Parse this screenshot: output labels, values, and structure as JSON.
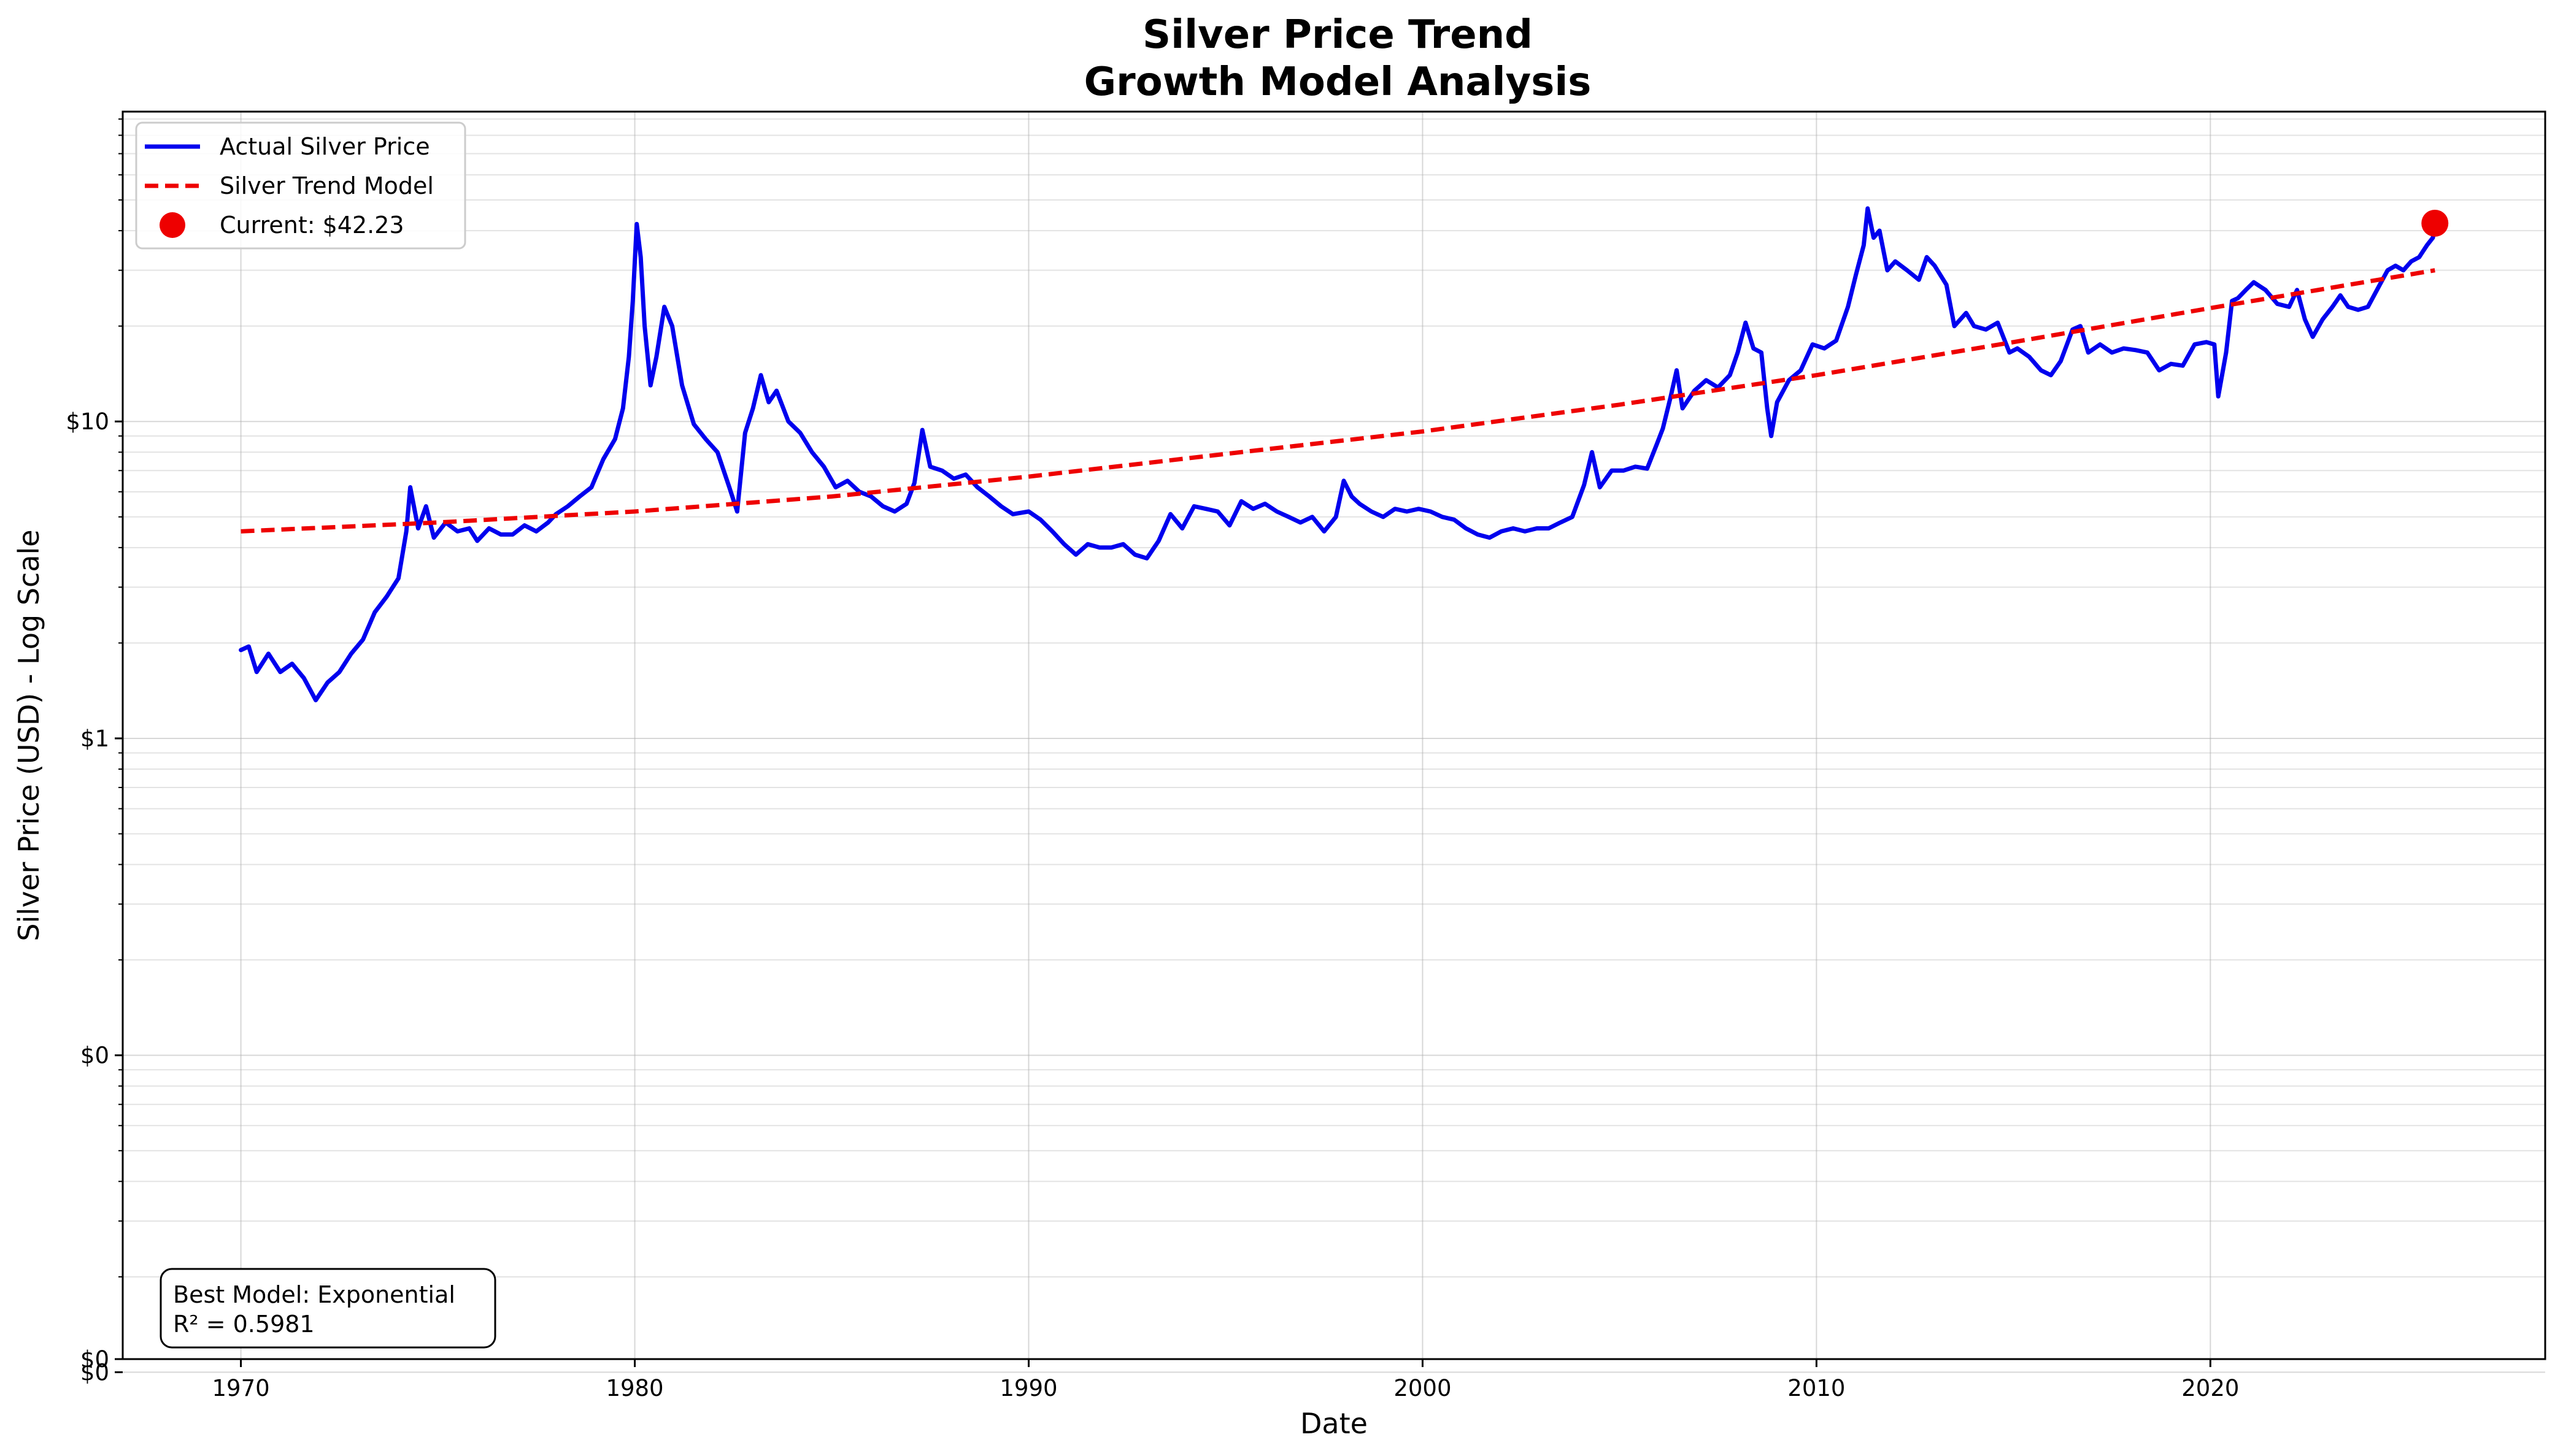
{
  "chart_data": {
    "type": "line",
    "title": "Silver Price Trend",
    "subtitle": "Growth Model Analysis",
    "xlabel": "Date",
    "ylabel": "Silver Price (USD) - Log Scale",
    "x_scale": "time",
    "y_scale": "log",
    "xlim": [
      1967.0,
      2028.5
    ],
    "ylim": [
      0.011,
      95
    ],
    "x_ticks": [
      {
        "value": 1970,
        "label": "1970"
      },
      {
        "value": 1980,
        "label": "1980"
      },
      {
        "value": 1990,
        "label": "1990"
      },
      {
        "value": 2000,
        "label": "2000"
      },
      {
        "value": 2010,
        "label": "2010"
      },
      {
        "value": 2020,
        "label": "2020"
      }
    ],
    "y_ticks": [
      {
        "value": 0.01,
        "label": "$0"
      },
      {
        "value": 0.1,
        "label": "$0"
      },
      {
        "value": 1,
        "label": "$1"
      },
      {
        "value": 10,
        "label": "$10"
      }
    ],
    "grid": true,
    "legend_position": "top-left",
    "series": [
      {
        "name": "Actual Silver Price",
        "color": "#0000ee",
        "style": "solid",
        "points": [
          [
            1970.0,
            1.9
          ],
          [
            1970.2,
            1.95
          ],
          [
            1970.4,
            1.62
          ],
          [
            1970.7,
            1.85
          ],
          [
            1971.0,
            1.62
          ],
          [
            1971.3,
            1.72
          ],
          [
            1971.6,
            1.55
          ],
          [
            1971.9,
            1.32
          ],
          [
            1972.2,
            1.5
          ],
          [
            1972.5,
            1.62
          ],
          [
            1972.8,
            1.85
          ],
          [
            1973.1,
            2.05
          ],
          [
            1973.4,
            2.5
          ],
          [
            1973.7,
            2.8
          ],
          [
            1974.0,
            3.2
          ],
          [
            1974.2,
            4.5
          ],
          [
            1974.3,
            6.2
          ],
          [
            1974.5,
            4.6
          ],
          [
            1974.7,
            5.4
          ],
          [
            1974.9,
            4.3
          ],
          [
            1975.2,
            4.8
          ],
          [
            1975.5,
            4.5
          ],
          [
            1975.8,
            4.6
          ],
          [
            1976.0,
            4.2
          ],
          [
            1976.3,
            4.6
          ],
          [
            1976.6,
            4.4
          ],
          [
            1976.9,
            4.4
          ],
          [
            1977.2,
            4.7
          ],
          [
            1977.5,
            4.5
          ],
          [
            1977.8,
            4.8
          ],
          [
            1978.0,
            5.1
          ],
          [
            1978.3,
            5.4
          ],
          [
            1978.6,
            5.8
          ],
          [
            1978.9,
            6.2
          ],
          [
            1979.2,
            7.6
          ],
          [
            1979.5,
            8.8
          ],
          [
            1979.7,
            11.0
          ],
          [
            1979.85,
            16.0
          ],
          [
            1979.95,
            24.0
          ],
          [
            1980.05,
            42.0
          ],
          [
            1980.15,
            33.0
          ],
          [
            1980.25,
            20.0
          ],
          [
            1980.4,
            13.0
          ],
          [
            1980.55,
            16.0
          ],
          [
            1980.75,
            23.0
          ],
          [
            1980.95,
            20.0
          ],
          [
            1981.2,
            13.0
          ],
          [
            1981.5,
            9.8
          ],
          [
            1981.8,
            8.8
          ],
          [
            1982.1,
            8.0
          ],
          [
            1982.4,
            6.2
          ],
          [
            1982.6,
            5.2
          ],
          [
            1982.8,
            9.2
          ],
          [
            1983.0,
            11.0
          ],
          [
            1983.2,
            14.0
          ],
          [
            1983.4,
            11.5
          ],
          [
            1983.6,
            12.5
          ],
          [
            1983.9,
            10.0
          ],
          [
            1984.2,
            9.2
          ],
          [
            1984.5,
            8.0
          ],
          [
            1984.8,
            7.2
          ],
          [
            1985.1,
            6.2
          ],
          [
            1985.4,
            6.5
          ],
          [
            1985.7,
            6.0
          ],
          [
            1986.0,
            5.8
          ],
          [
            1986.3,
            5.4
          ],
          [
            1986.6,
            5.2
          ],
          [
            1986.9,
            5.5
          ],
          [
            1987.1,
            6.4
          ],
          [
            1987.3,
            9.4
          ],
          [
            1987.5,
            7.2
          ],
          [
            1987.8,
            7.0
          ],
          [
            1988.1,
            6.6
          ],
          [
            1988.4,
            6.8
          ],
          [
            1988.7,
            6.2
          ],
          [
            1989.0,
            5.8
          ],
          [
            1989.3,
            5.4
          ],
          [
            1989.6,
            5.1
          ],
          [
            1990.0,
            5.2
          ],
          [
            1990.3,
            4.9
          ],
          [
            1990.6,
            4.5
          ],
          [
            1990.9,
            4.1
          ],
          [
            1991.2,
            3.8
          ],
          [
            1991.5,
            4.1
          ],
          [
            1991.8,
            4.0
          ],
          [
            1992.1,
            4.0
          ],
          [
            1992.4,
            4.1
          ],
          [
            1992.7,
            3.8
          ],
          [
            1993.0,
            3.7
          ],
          [
            1993.3,
            4.2
          ],
          [
            1993.6,
            5.1
          ],
          [
            1993.9,
            4.6
          ],
          [
            1994.2,
            5.4
          ],
          [
            1994.5,
            5.3
          ],
          [
            1994.8,
            5.2
          ],
          [
            1995.1,
            4.7
          ],
          [
            1995.4,
            5.6
          ],
          [
            1995.7,
            5.3
          ],
          [
            1996.0,
            5.5
          ],
          [
            1996.3,
            5.2
          ],
          [
            1996.6,
            5.0
          ],
          [
            1996.9,
            4.8
          ],
          [
            1997.2,
            5.0
          ],
          [
            1997.5,
            4.5
          ],
          [
            1997.8,
            5.0
          ],
          [
            1998.0,
            6.5
          ],
          [
            1998.2,
            5.8
          ],
          [
            1998.4,
            5.5
          ],
          [
            1998.7,
            5.2
          ],
          [
            1999.0,
            5.0
          ],
          [
            1999.3,
            5.3
          ],
          [
            1999.6,
            5.2
          ],
          [
            1999.9,
            5.3
          ],
          [
            2000.2,
            5.2
          ],
          [
            2000.5,
            5.0
          ],
          [
            2000.8,
            4.9
          ],
          [
            2001.1,
            4.6
          ],
          [
            2001.4,
            4.4
          ],
          [
            2001.7,
            4.3
          ],
          [
            2002.0,
            4.5
          ],
          [
            2002.3,
            4.6
          ],
          [
            2002.6,
            4.5
          ],
          [
            2002.9,
            4.6
          ],
          [
            2003.2,
            4.6
          ],
          [
            2003.5,
            4.8
          ],
          [
            2003.8,
            5.0
          ],
          [
            2004.1,
            6.3
          ],
          [
            2004.3,
            8.0
          ],
          [
            2004.5,
            6.2
          ],
          [
            2004.8,
            7.0
          ],
          [
            2005.1,
            7.0
          ],
          [
            2005.4,
            7.2
          ],
          [
            2005.7,
            7.1
          ],
          [
            2005.95,
            8.5
          ],
          [
            2006.1,
            9.5
          ],
          [
            2006.3,
            12.0
          ],
          [
            2006.45,
            14.5
          ],
          [
            2006.6,
            11.0
          ],
          [
            2006.9,
            12.5
          ],
          [
            2007.2,
            13.5
          ],
          [
            2007.5,
            12.8
          ],
          [
            2007.8,
            14.0
          ],
          [
            2008.0,
            16.5
          ],
          [
            2008.2,
            20.5
          ],
          [
            2008.4,
            17.0
          ],
          [
            2008.6,
            16.5
          ],
          [
            2008.75,
            11.0
          ],
          [
            2008.85,
            9.0
          ],
          [
            2009.0,
            11.5
          ],
          [
            2009.3,
            13.5
          ],
          [
            2009.6,
            14.5
          ],
          [
            2009.9,
            17.5
          ],
          [
            2010.2,
            17.0
          ],
          [
            2010.5,
            18.0
          ],
          [
            2010.8,
            23.0
          ],
          [
            2011.0,
            29.0
          ],
          [
            2011.2,
            36.0
          ],
          [
            2011.3,
            47.0
          ],
          [
            2011.45,
            38.0
          ],
          [
            2011.6,
            40.0
          ],
          [
            2011.8,
            30.0
          ],
          [
            2012.0,
            32.0
          ],
          [
            2012.3,
            30.0
          ],
          [
            2012.6,
            28.0
          ],
          [
            2012.8,
            33.0
          ],
          [
            2013.0,
            31.0
          ],
          [
            2013.3,
            27.0
          ],
          [
            2013.5,
            20.0
          ],
          [
            2013.8,
            22.0
          ],
          [
            2014.0,
            20.0
          ],
          [
            2014.3,
            19.5
          ],
          [
            2014.6,
            20.5
          ],
          [
            2014.9,
            16.5
          ],
          [
            2015.1,
            17.0
          ],
          [
            2015.4,
            16.0
          ],
          [
            2015.7,
            14.5
          ],
          [
            2015.95,
            14.0
          ],
          [
            2016.2,
            15.5
          ],
          [
            2016.5,
            19.5
          ],
          [
            2016.7,
            20.0
          ],
          [
            2016.9,
            16.5
          ],
          [
            2017.2,
            17.5
          ],
          [
            2017.5,
            16.5
          ],
          [
            2017.8,
            17.0
          ],
          [
            2018.1,
            16.8
          ],
          [
            2018.4,
            16.5
          ],
          [
            2018.7,
            14.5
          ],
          [
            2019.0,
            15.2
          ],
          [
            2019.3,
            15.0
          ],
          [
            2019.6,
            17.5
          ],
          [
            2019.9,
            17.8
          ],
          [
            2020.1,
            17.5
          ],
          [
            2020.2,
            12.0
          ],
          [
            2020.4,
            16.5
          ],
          [
            2020.55,
            24.0
          ],
          [
            2020.7,
            24.5
          ],
          [
            2020.9,
            26.0
          ],
          [
            2021.1,
            27.5
          ],
          [
            2021.4,
            26.0
          ],
          [
            2021.7,
            23.5
          ],
          [
            2022.0,
            23.0
          ],
          [
            2022.2,
            26.0
          ],
          [
            2022.4,
            21.0
          ],
          [
            2022.6,
            18.5
          ],
          [
            2022.85,
            21.0
          ],
          [
            2023.1,
            23.0
          ],
          [
            2023.3,
            25.0
          ],
          [
            2023.5,
            23.0
          ],
          [
            2023.75,
            22.5
          ],
          [
            2024.0,
            23.0
          ],
          [
            2024.3,
            27.0
          ],
          [
            2024.5,
            30.0
          ],
          [
            2024.7,
            31.0
          ],
          [
            2024.9,
            30.0
          ],
          [
            2025.1,
            32.0
          ],
          [
            2025.3,
            33.0
          ],
          [
            2025.5,
            36.0
          ],
          [
            2025.65,
            38.0
          ],
          [
            2025.7,
            42.23
          ]
        ]
      },
      {
        "name": "Silver Trend Model",
        "color": "#ee0000",
        "style": "dashed",
        "model": "exponential",
        "points": [
          [
            1970.0,
            4.5
          ],
          [
            1975.0,
            4.8
          ],
          [
            1980.0,
            5.2
          ],
          [
            1985.0,
            5.8
          ],
          [
            1990.0,
            6.7
          ],
          [
            1995.0,
            7.9
          ],
          [
            2000.0,
            9.3
          ],
          [
            2005.0,
            11.3
          ],
          [
            2010.0,
            14.0
          ],
          [
            2015.0,
            17.8
          ],
          [
            2020.0,
            22.8
          ],
          [
            2025.7,
            30.0
          ]
        ]
      }
    ],
    "current_point": {
      "name": "Current: $42.23",
      "x": 2025.7,
      "y": 42.23,
      "color": "#ee0000"
    },
    "annotation": {
      "line1": "Best Model: Exponential",
      "line2": "R² = 0.5981"
    }
  }
}
